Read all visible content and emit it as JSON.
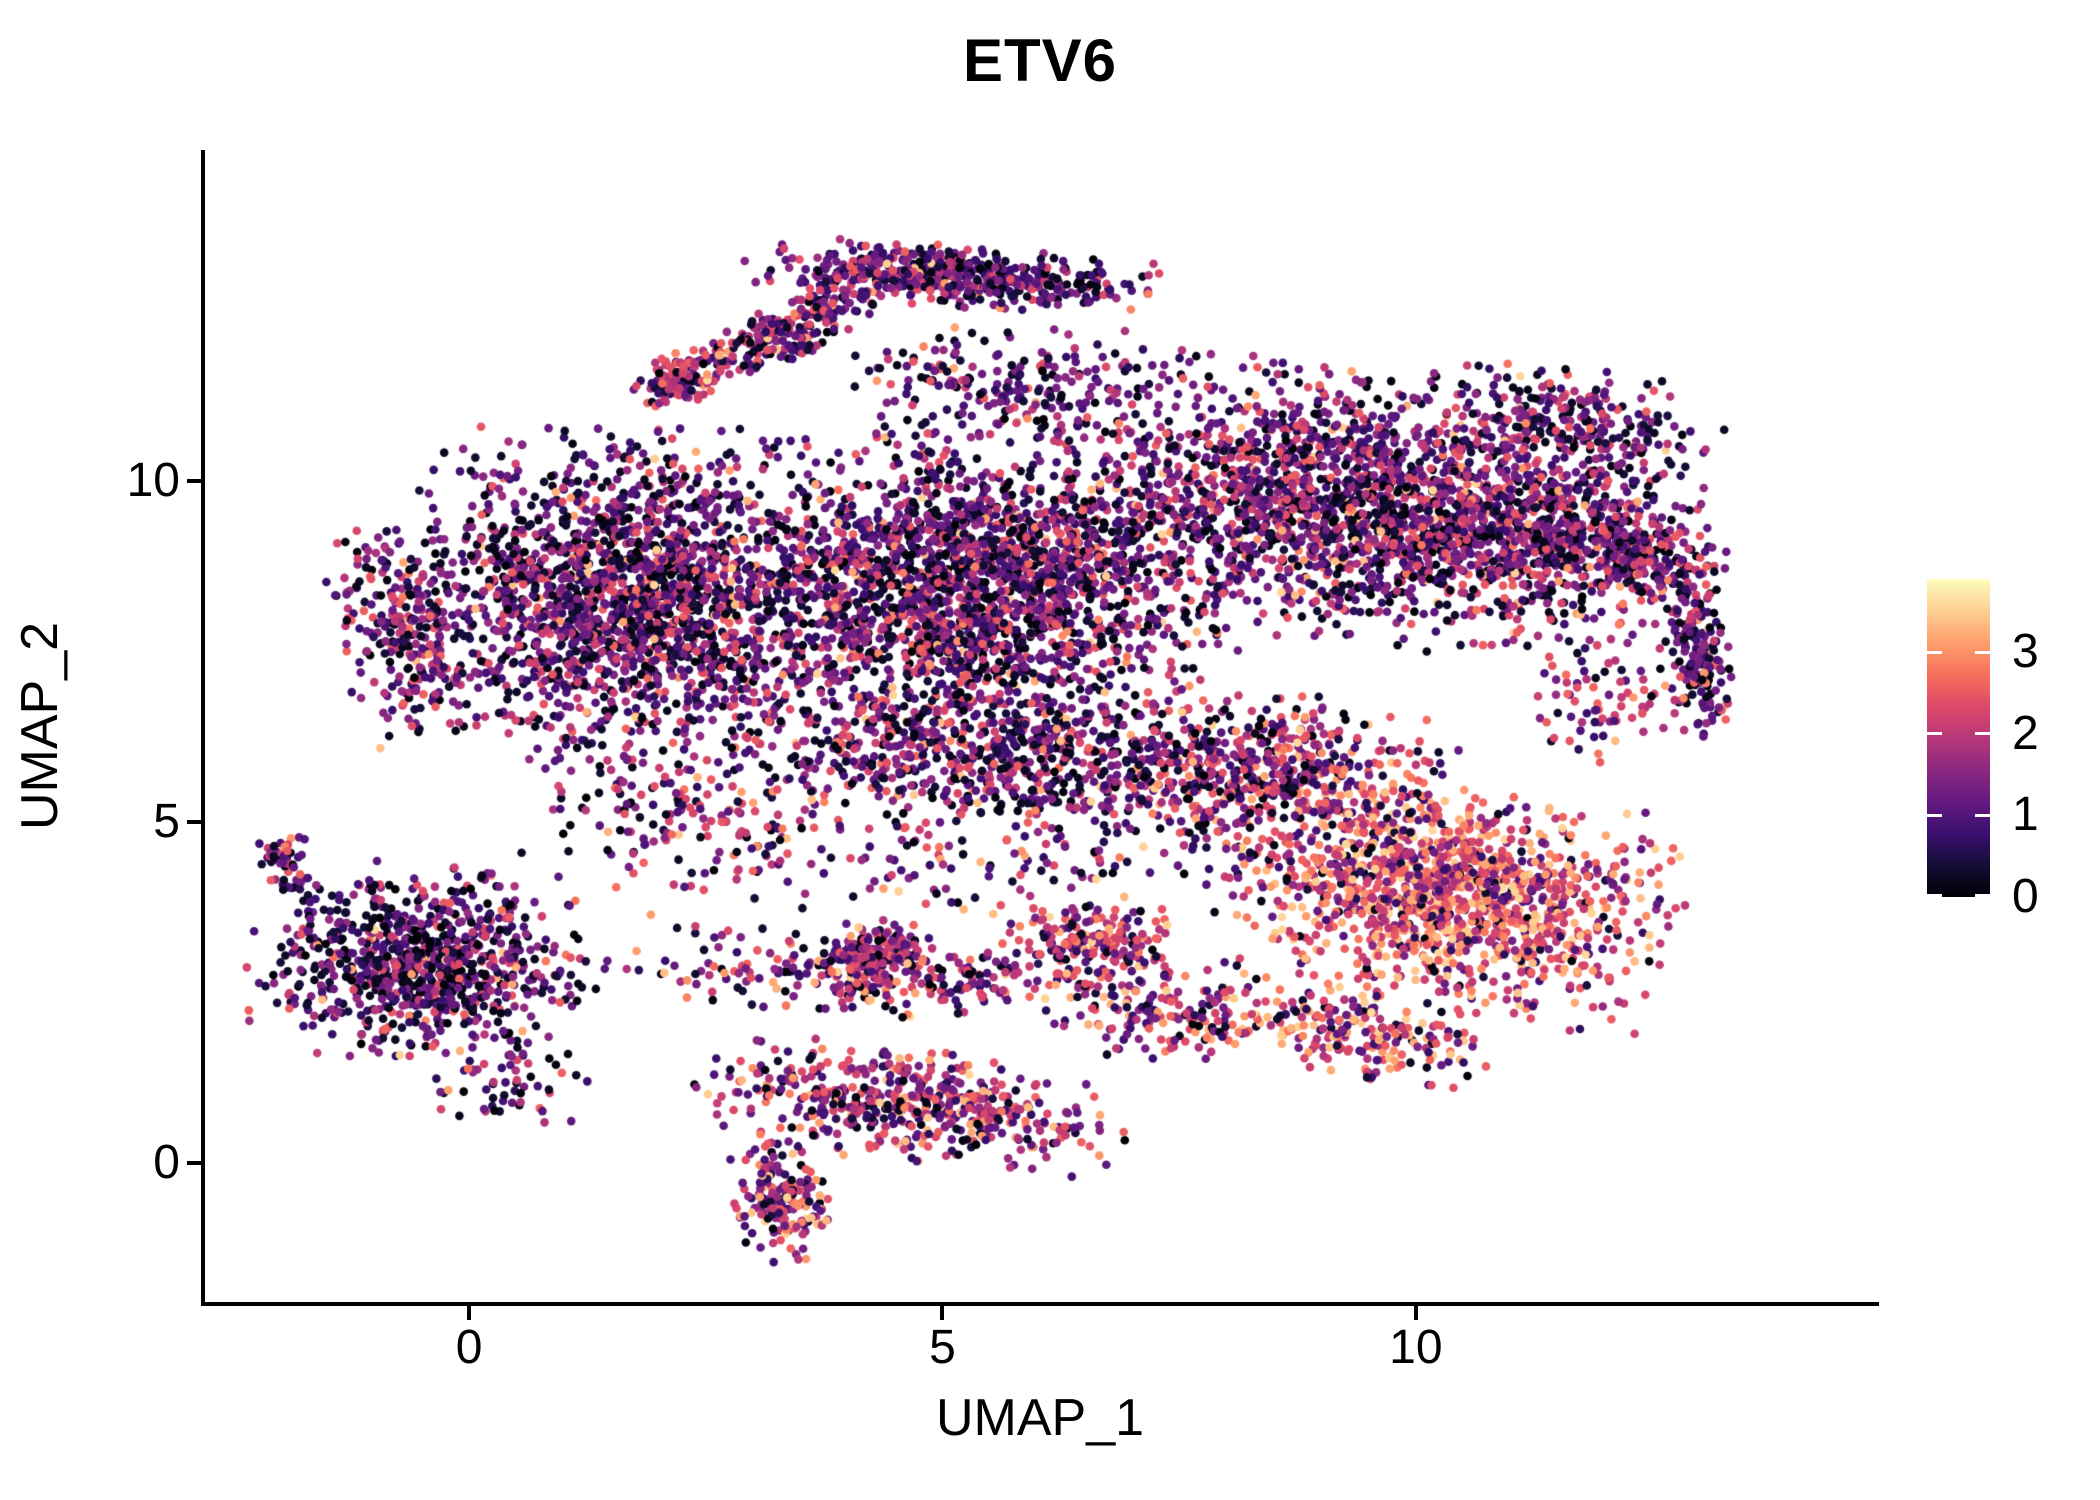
{
  "chart_data": {
    "type": "scatter",
    "title": "ETV6",
    "xlabel": "UMAP_1",
    "ylabel": "UMAP_2",
    "xlim": [
      -2.79,
      14.85
    ],
    "ylim": [
      -2.04,
      14.85
    ],
    "x_ticks": [
      0,
      5,
      10
    ],
    "y_ticks": [
      0,
      5,
      10
    ],
    "grid": false,
    "legend_position": "right",
    "point_color_encoding": "ETV6 expression level",
    "colorbar": {
      "vmin": 0,
      "vmax": 3.9,
      "ticks": [
        0,
        1,
        2,
        3
      ],
      "colormap": "magma",
      "stops": [
        "#000004",
        "#140e36",
        "#3b0f70",
        "#641a80",
        "#8c2981",
        "#b73779",
        "#de4968",
        "#f7705c",
        "#fe9f6d",
        "#fecf92",
        "#fcfdbf"
      ]
    },
    "expr_bands": [
      [
        0.0,
        0.45
      ],
      [
        0.6,
        1.7
      ],
      [
        1.8,
        2.6
      ],
      [
        2.6,
        3.6
      ]
    ],
    "sampling_note": "Point cloud estimated from pixels as gaussian density blobs; expr_weights = relative share of [dark, purple, pink, orange] expression bands.",
    "clusters": [
      {
        "name": "cap-arc",
        "cx": 5.1,
        "cy": 13.0,
        "rx": 1.85,
        "ry": 0.38,
        "rot": -5,
        "n": 520,
        "expr_weights": [
          28,
          50,
          19,
          3
        ]
      },
      {
        "name": "cap-left-wing",
        "cx": 3.35,
        "cy": 12.2,
        "rx": 1.05,
        "ry": 0.33,
        "rot": 32,
        "n": 240,
        "expr_weights": [
          22,
          46,
          28,
          4
        ]
      },
      {
        "name": "cap-pink-streak",
        "cx": 2.25,
        "cy": 11.5,
        "rx": 0.5,
        "ry": 0.3,
        "rot": 30,
        "n": 130,
        "expr_weights": [
          10,
          30,
          48,
          12
        ]
      },
      {
        "name": "main-left-lobe",
        "cx": 1.7,
        "cy": 8.3,
        "rx": 2.1,
        "ry": 2.1,
        "rot": 0,
        "n": 1950,
        "expr_weights": [
          33,
          45,
          18,
          4
        ]
      },
      {
        "name": "left-edge",
        "cx": -0.7,
        "cy": 7.8,
        "rx": 0.6,
        "ry": 1.4,
        "rot": 8,
        "n": 240,
        "expr_weights": [
          30,
          46,
          20,
          4
        ]
      },
      {
        "name": "main-center",
        "cx": 5.4,
        "cy": 8.5,
        "rx": 2.3,
        "ry": 2.1,
        "rot": 0,
        "n": 2150,
        "expr_weights": [
          30,
          45,
          20,
          5
        ]
      },
      {
        "name": "main-right-top",
        "cx": 8.9,
        "cy": 9.7,
        "rx": 2.3,
        "ry": 1.7,
        "rot": -8,
        "n": 1500,
        "expr_weights": [
          28,
          46,
          21,
          5
        ]
      },
      {
        "name": "right-lobe",
        "cx": 11.2,
        "cy": 9.2,
        "rx": 1.7,
        "ry": 1.4,
        "rot": -10,
        "n": 850,
        "expr_weights": [
          26,
          46,
          23,
          5
        ]
      },
      {
        "name": "right-edge-arc",
        "cx": 12.35,
        "cy": 8.9,
        "rx": 0.8,
        "ry": 0.5,
        "rot": -25,
        "n": 200,
        "expr_weights": [
          25,
          45,
          25,
          5
        ]
      },
      {
        "name": "far-right-tip",
        "cx": 13.0,
        "cy": 7.5,
        "rx": 0.3,
        "ry": 1.05,
        "rot": 5,
        "n": 170,
        "expr_weights": [
          30,
          52,
          15,
          3
        ]
      },
      {
        "name": "right-bay-sparse",
        "cx": 12.0,
        "cy": 6.8,
        "rx": 0.8,
        "ry": 1.0,
        "rot": 0,
        "n": 80,
        "expr_weights": [
          10,
          30,
          40,
          20
        ]
      },
      {
        "name": "right-bottom-orange",
        "cx": 10.4,
        "cy": 3.9,
        "rx": 2.05,
        "ry": 1.4,
        "rot": -12,
        "n": 1300,
        "expr_weights": [
          6,
          20,
          36,
          38
        ]
      },
      {
        "name": "orange-lower-edge",
        "cx": 9.4,
        "cy": 1.9,
        "rx": 1.3,
        "ry": 0.55,
        "rot": -18,
        "n": 220,
        "expr_weights": [
          8,
          22,
          34,
          36
        ]
      },
      {
        "name": "right-mid-bridge",
        "cx": 8.5,
        "cy": 5.7,
        "rx": 1.7,
        "ry": 1.0,
        "rot": -5,
        "n": 520,
        "expr_weights": [
          20,
          38,
          28,
          14
        ]
      },
      {
        "name": "mid-bottom-band",
        "cx": 5.5,
        "cy": 6.0,
        "rx": 2.7,
        "ry": 0.85,
        "rot": -3,
        "n": 680,
        "expr_weights": [
          30,
          45,
          20,
          5
        ]
      },
      {
        "name": "below-cap-sparse",
        "cx": 5.8,
        "cy": 11.4,
        "rx": 1.6,
        "ry": 0.75,
        "rot": 0,
        "n": 210,
        "expr_weights": [
          30,
          46,
          20,
          4
        ]
      },
      {
        "name": "mid-band-y3",
        "cx": 4.6,
        "cy": 2.7,
        "rx": 3.0,
        "ry": 0.5,
        "rot": -4,
        "n": 300,
        "expr_weights": [
          18,
          40,
          30,
          12
        ]
      },
      {
        "name": "band-clump-a",
        "cx": 4.35,
        "cy": 3.1,
        "rx": 0.55,
        "ry": 0.4,
        "rot": 0,
        "n": 150,
        "expr_weights": [
          15,
          35,
          35,
          15
        ]
      },
      {
        "name": "band-clump-b",
        "cx": 6.6,
        "cy": 3.25,
        "rx": 0.8,
        "ry": 0.45,
        "rot": -10,
        "n": 170,
        "expr_weights": [
          12,
          30,
          38,
          20
        ]
      },
      {
        "name": "left-cluster",
        "cx": -0.55,
        "cy": 2.9,
        "rx": 1.5,
        "ry": 1.25,
        "rot": -8,
        "n": 880,
        "expr_weights": [
          37,
          45,
          16,
          2
        ]
      },
      {
        "name": "left-knot",
        "cx": -1.95,
        "cy": 4.4,
        "rx": 0.25,
        "ry": 0.4,
        "rot": 0,
        "n": 45,
        "expr_weights": [
          28,
          46,
          22,
          4
        ]
      },
      {
        "name": "bottom-cluster",
        "cx": 4.7,
        "cy": 0.85,
        "rx": 1.95,
        "ry": 0.75,
        "rot": -10,
        "n": 520,
        "expr_weights": [
          15,
          37,
          32,
          16
        ]
      },
      {
        "name": "bottom-tail",
        "cx": 3.3,
        "cy": -0.55,
        "rx": 0.45,
        "ry": 0.8,
        "rot": 12,
        "n": 170,
        "expr_weights": [
          13,
          35,
          33,
          19
        ]
      },
      {
        "name": "bridge-left-main",
        "cx": 2.3,
        "cy": 5.1,
        "rx": 1.6,
        "ry": 0.9,
        "rot": -15,
        "n": 150,
        "expr_weights": [
          25,
          42,
          26,
          7
        ]
      },
      {
        "name": "scatter-mid",
        "cx": 6.0,
        "cy": 4.5,
        "rx": 4.2,
        "ry": 1.1,
        "rot": 0,
        "n": 240,
        "expr_weights": [
          22,
          40,
          28,
          10
        ]
      },
      {
        "name": "bridge-bottom-right",
        "cx": 7.4,
        "cy": 2.1,
        "rx": 1.1,
        "ry": 0.6,
        "rot": -8,
        "n": 130,
        "expr_weights": [
          14,
          34,
          32,
          20
        ]
      },
      {
        "name": "top-right-sparse",
        "cx": 11.6,
        "cy": 10.9,
        "rx": 1.4,
        "ry": 0.7,
        "rot": -12,
        "n": 260,
        "expr_weights": [
          30,
          46,
          20,
          4
        ]
      },
      {
        "name": "left-below-sparse",
        "cx": 0.3,
        "cy": 1.1,
        "rx": 0.9,
        "ry": 0.5,
        "rot": 0,
        "n": 50,
        "expr_weights": [
          30,
          45,
          20,
          5
        ]
      }
    ]
  }
}
